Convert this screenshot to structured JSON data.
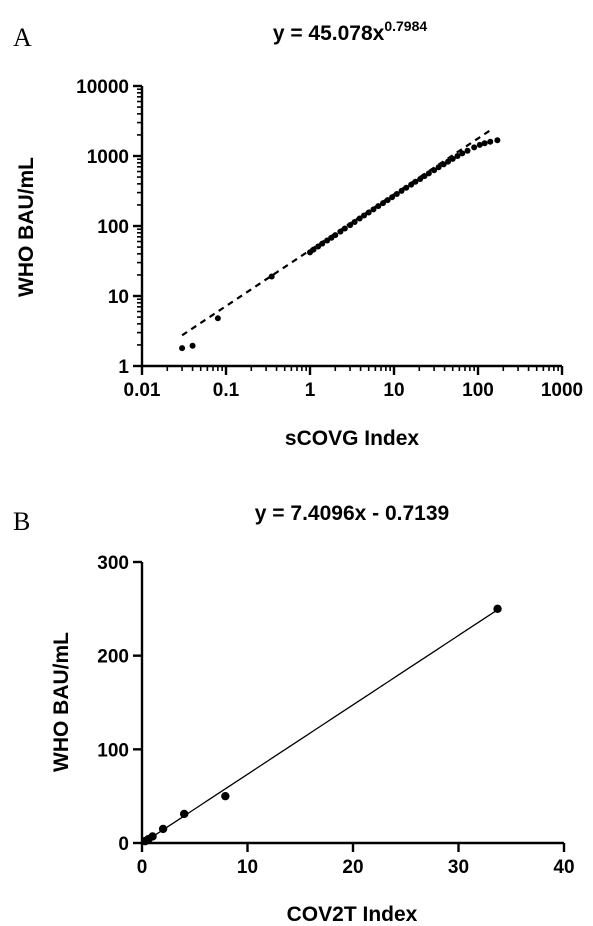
{
  "chart_data": [
    {
      "panel_label": "A",
      "type": "scatter",
      "title": "y = 45.078x",
      "title_exponent": "0.7984",
      "xlabel": "sCOVG Index",
      "ylabel": "WHO BAU/mL",
      "xscale": "log",
      "yscale": "log",
      "xlim": [
        0.01,
        1000
      ],
      "ylim": [
        1,
        10000
      ],
      "xticks": [
        "0.01",
        "0.1",
        "1",
        "10",
        "100",
        "1000"
      ],
      "yticks": [
        "1",
        "10",
        "100",
        "1000",
        "10000"
      ],
      "grid": false,
      "fit": {
        "kind": "power",
        "a": 45.078,
        "b": 0.7984,
        "x_range": [
          0.03,
          150
        ],
        "style": "dashed"
      },
      "series": [
        {
          "x": [
            0.03,
            0.04,
            0.08,
            0.35,
            1.0,
            1.1,
            1.25,
            1.4,
            1.6,
            1.8,
            2.0,
            2.3,
            2.6,
            3.0,
            3.4,
            3.9,
            4.4,
            5.0,
            5.7,
            6.5,
            7.4,
            8.4,
            9.5,
            10.8,
            12.3,
            14,
            16,
            18,
            20.5,
            23,
            26,
            30,
            34,
            39,
            44,
            50,
            57,
            65,
            75,
            90,
            105,
            120,
            140,
            170
          ],
          "y": [
            1.8,
            1.95,
            4.8,
            19,
            42,
            46,
            51,
            56,
            62,
            68,
            74,
            83,
            92,
            103,
            114,
            128,
            141,
            156,
            173,
            192,
            212,
            234,
            258,
            286,
            318,
            352,
            390,
            428,
            470,
            515,
            565,
            625,
            690,
            760,
            830,
            910,
            1000,
            1090,
            1190,
            1330,
            1440,
            1520,
            1600,
            1680
          ]
        }
      ]
    },
    {
      "panel_label": "B",
      "type": "scatter",
      "title": "y = 7.4096x - 0.7139",
      "xlabel": "COV2T Index",
      "ylabel": "WHO BAU/mL",
      "xlim": [
        0,
        40
      ],
      "ylim": [
        0,
        300
      ],
      "xticks": [
        "0",
        "10",
        "20",
        "30",
        "40"
      ],
      "yticks": [
        "0",
        "100",
        "200",
        "300"
      ],
      "grid": false,
      "fit": {
        "kind": "linear",
        "slope": 7.4096,
        "intercept": -0.7139,
        "x_range": [
          0.1,
          33.7
        ],
        "style": "solid"
      },
      "series": [
        {
          "x": [
            0.3,
            0.6,
            1.0,
            2.0,
            4.0,
            7.9,
            33.7
          ],
          "y": [
            2,
            4,
            7,
            15,
            31,
            50,
            250
          ]
        }
      ]
    }
  ]
}
